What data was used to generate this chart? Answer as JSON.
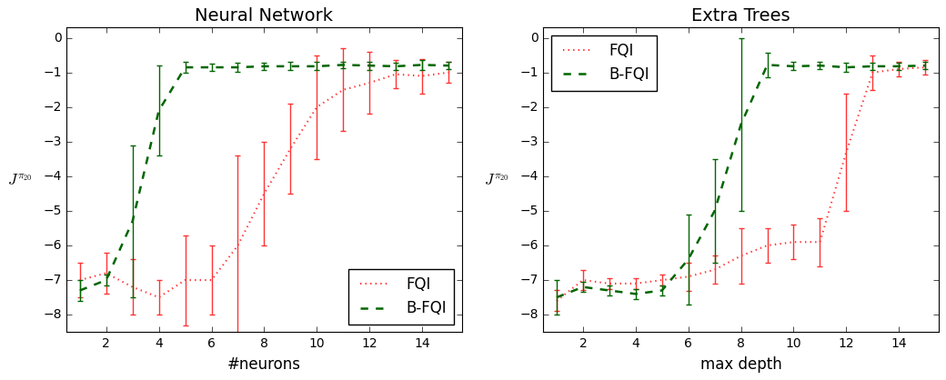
{
  "nn_title": "Neural Network",
  "et_title": "Extra Trees",
  "nn_xlabel": "#neurons",
  "et_xlabel": "max depth",
  "ylabel": "$J^{\\pi_{20}}$",
  "ylim": [
    -8.5,
    0.3
  ],
  "nn_x": [
    1,
    2,
    3,
    4,
    5,
    6,
    7,
    8,
    9,
    10,
    11,
    12,
    13,
    14,
    15
  ],
  "nn_fqi_y": [
    -7.0,
    -6.8,
    -7.2,
    -7.5,
    -7.0,
    -7.0,
    -6.0,
    -4.5,
    -3.2,
    -2.0,
    -1.5,
    -1.3,
    -1.05,
    -1.1,
    -1.0
  ],
  "nn_fqi_err": [
    0.5,
    0.6,
    0.8,
    0.5,
    1.3,
    1.0,
    2.6,
    1.5,
    1.3,
    1.5,
    1.2,
    0.9,
    0.4,
    0.5,
    0.3
  ],
  "nn_bfqi_y": [
    -7.3,
    -7.0,
    -5.3,
    -2.1,
    -0.85,
    -0.85,
    -0.85,
    -0.82,
    -0.82,
    -0.82,
    -0.78,
    -0.8,
    -0.82,
    -0.78,
    -0.8
  ],
  "nn_bfqi_err": [
    0.3,
    0.15,
    2.2,
    1.3,
    0.15,
    0.1,
    0.12,
    0.1,
    0.12,
    0.12,
    0.1,
    0.12,
    0.1,
    0.15,
    0.1
  ],
  "et_x": [
    1,
    2,
    3,
    4,
    5,
    6,
    7,
    8,
    9,
    10,
    11,
    12,
    13,
    14,
    15
  ],
  "et_fqi_y": [
    -7.6,
    -7.0,
    -7.1,
    -7.1,
    -7.0,
    -6.9,
    -6.7,
    -6.3,
    -6.0,
    -5.9,
    -5.9,
    -3.3,
    -1.0,
    -0.9,
    -0.85
  ],
  "et_fqi_err": [
    0.3,
    0.3,
    0.15,
    0.15,
    0.15,
    0.4,
    0.4,
    0.8,
    0.5,
    0.5,
    0.7,
    1.7,
    0.5,
    0.2,
    0.2
  ],
  "et_bfqi_y": [
    -7.5,
    -7.2,
    -7.3,
    -7.4,
    -7.3,
    -6.4,
    -5.0,
    -2.5,
    -0.78,
    -0.82,
    -0.8,
    -0.85,
    -0.82,
    -0.82,
    -0.8
  ],
  "et_bfqi_err": [
    0.5,
    0.15,
    0.15,
    0.15,
    0.15,
    1.3,
    1.5,
    2.5,
    0.35,
    0.12,
    0.1,
    0.12,
    0.1,
    0.1,
    0.1
  ],
  "fqi_color": "#ff3333",
  "bfqi_color": "#006600",
  "fqi_label": "FQI",
  "bfqi_label": "B-FQI",
  "legend_loc_nn": "lower right",
  "legend_loc_et": "upper left",
  "xticks": [
    2,
    4,
    6,
    8,
    10,
    12,
    14
  ],
  "yticks": [
    0,
    -1,
    -2,
    -3,
    -4,
    -5,
    -6,
    -7,
    -8
  ],
  "ylim_lo": -8.5,
  "ylim_hi": 0.3,
  "xlim_lo": 0.5,
  "xlim_hi": 15.5
}
